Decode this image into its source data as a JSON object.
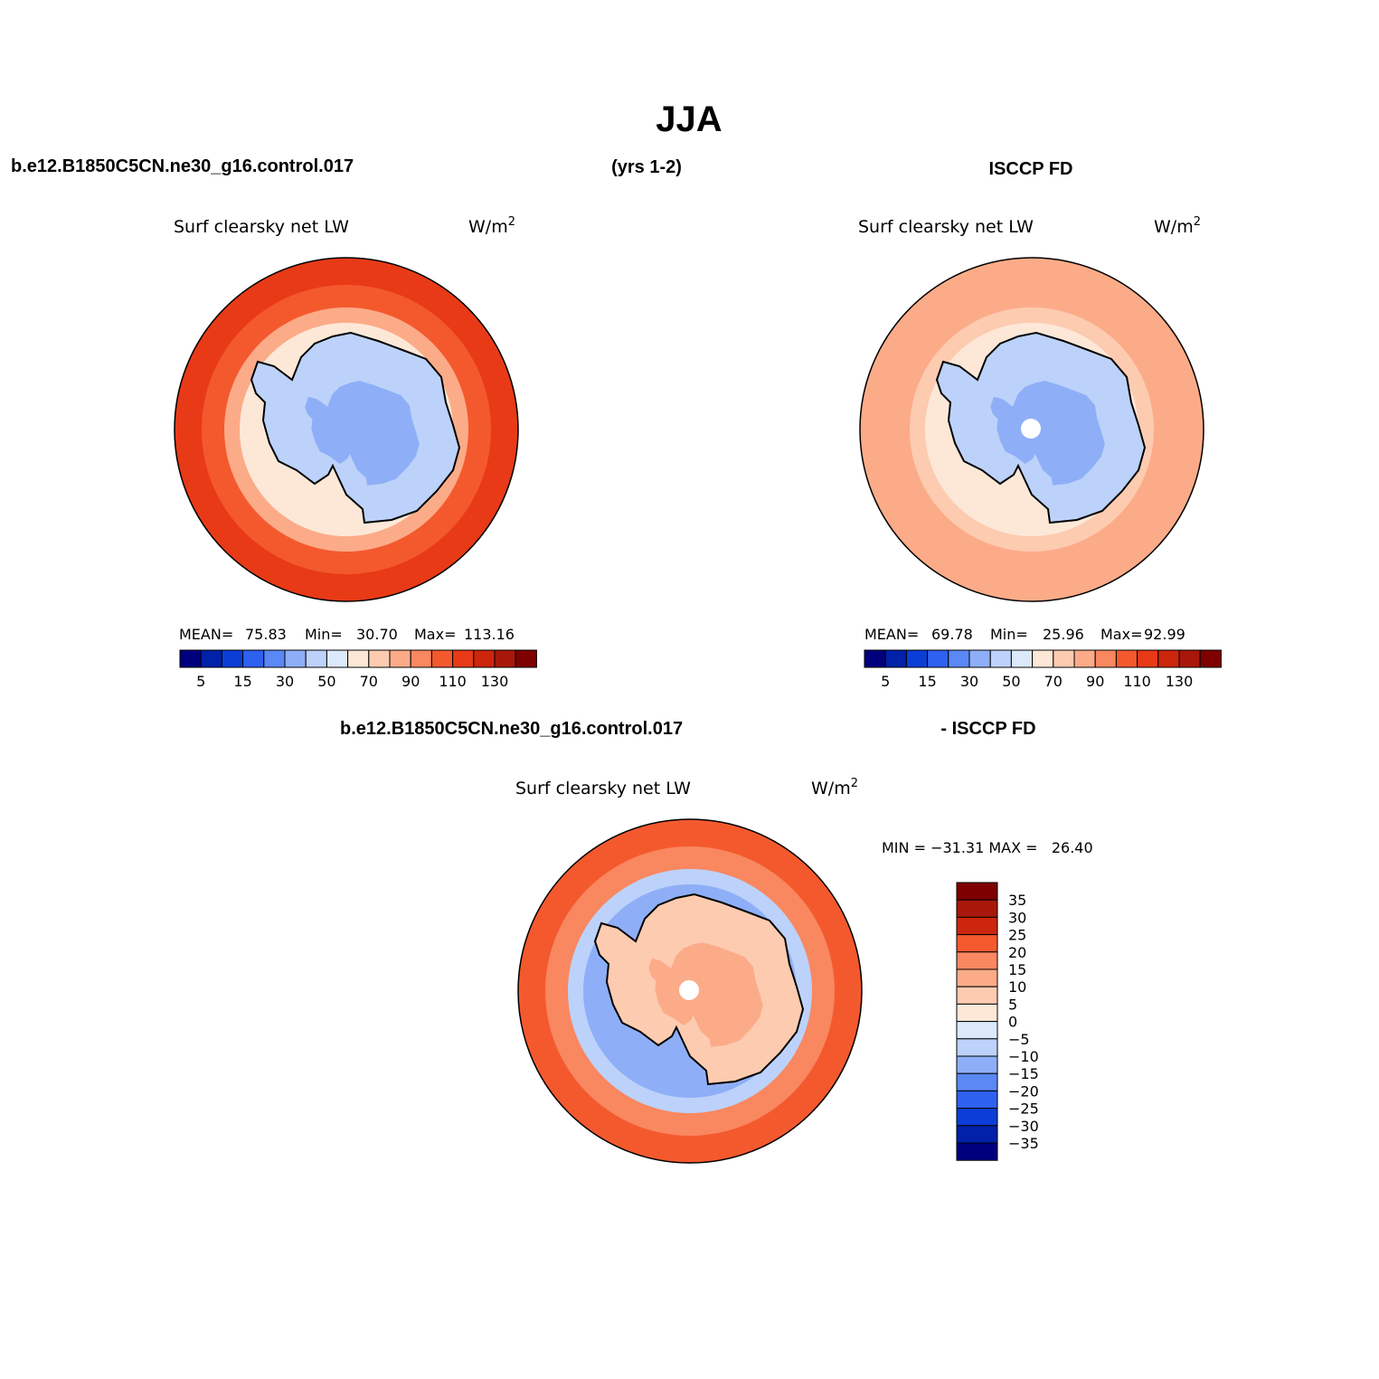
{
  "title": "JJA",
  "header": {
    "left": "b.e12.B1850C5CN.ne30_g16.control.017",
    "center": "(yrs 1-2)",
    "right": "ISCCP FD"
  },
  "diff_header": {
    "left": "b.e12.B1850C5CN.ne30_g16.control.017",
    "right": "- ISCCP FD"
  },
  "colors": {
    "coastline": "#000000",
    "missing_pole": "#ffffff"
  },
  "chart_data": [
    {
      "type": "heatmap",
      "projection": "south polar stereographic",
      "variable": "Surf clearsky net LW",
      "units": "W/m",
      "units_superscript": "2",
      "stats": {
        "mean_label": "MEAN=",
        "mean": "75.83",
        "min_label": "Min=",
        "min": "30.70",
        "max_label": "Max=",
        "max": "113.16"
      },
      "colorbar": {
        "orientation": "horizontal",
        "colors": [
          "#00007f",
          "#0021a8",
          "#0a3ed6",
          "#2f61ef",
          "#5a88f5",
          "#8eaff7",
          "#bcd2fa",
          "#dce9fa",
          "#fde8d8",
          "#fdcbb0",
          "#fcab88",
          "#f98760",
          "#f4592e",
          "#e83a17",
          "#cc260d",
          "#a8180a",
          "#7f0000"
        ],
        "tick_labels": [
          "5",
          "15",
          "30",
          "50",
          "70",
          "90",
          "110",
          "130"
        ]
      },
      "field": {
        "ocean_outer": 110,
        "ocean_mid": 100,
        "sea_ice_edge": 80,
        "coastal_ice": 65,
        "antarctic_interior": 42,
        "interior_core": 36,
        "pole": 34
      }
    },
    {
      "type": "heatmap",
      "projection": "south polar stereographic",
      "variable": "Surf clearsky net LW",
      "units": "W/m",
      "units_superscript": "2",
      "stats": {
        "mean_label": "MEAN=",
        "mean": "69.78",
        "min_label": "Min=",
        "min": "25.96",
        "max_label": "Max=",
        "max": "92.99"
      },
      "colorbar": {
        "orientation": "horizontal",
        "colors": [
          "#00007f",
          "#0021a8",
          "#0a3ed6",
          "#2f61ef",
          "#5a88f5",
          "#8eaff7",
          "#bcd2fa",
          "#dce9fa",
          "#fde8d8",
          "#fdcbb0",
          "#fcab88",
          "#f98760",
          "#f4592e",
          "#e83a17",
          "#cc260d",
          "#a8180a",
          "#7f0000"
        ],
        "tick_labels": [
          "5",
          "15",
          "30",
          "50",
          "70",
          "90",
          "110",
          "130"
        ]
      },
      "field": {
        "ocean_outer": 85,
        "ocean_mid": 82,
        "sea_ice_edge": 72,
        "coastal_ice": 62,
        "antarctic_interior": 45,
        "interior_core": 35,
        "pole": "missing"
      }
    },
    {
      "type": "heatmap",
      "projection": "south polar stereographic",
      "variable": "Surf clearsky net LW",
      "units": "W/m",
      "units_superscript": "2",
      "stats": {
        "text": "MIN = −31.31 MAX =   26.40",
        "min": "−31.31",
        "max": "26.40"
      },
      "colorbar": {
        "orientation": "vertical",
        "colors": [
          "#7f0000",
          "#a8180a",
          "#cc260d",
          "#f4592e",
          "#f98760",
          "#fcab88",
          "#fdcbb0",
          "#fde8d8",
          "#dce9fa",
          "#bcd2fa",
          "#8eaff7",
          "#5a88f5",
          "#2f61ef",
          "#0a3ed6",
          "#0021a8",
          "#00007f"
        ],
        "tick_labels": [
          "35",
          "30",
          "25",
          "20",
          "15",
          "10",
          "5",
          "0",
          "−5",
          "−10",
          "−15",
          "−20",
          "−25",
          "−30",
          "−35"
        ]
      },
      "field": {
        "ocean_outer": 22,
        "ocean_mid": 17,
        "sea_ice_edge": -8,
        "coastal_ice": -14,
        "antarctic_interior": 8,
        "interior_core": 14,
        "pole": "missing"
      }
    }
  ]
}
